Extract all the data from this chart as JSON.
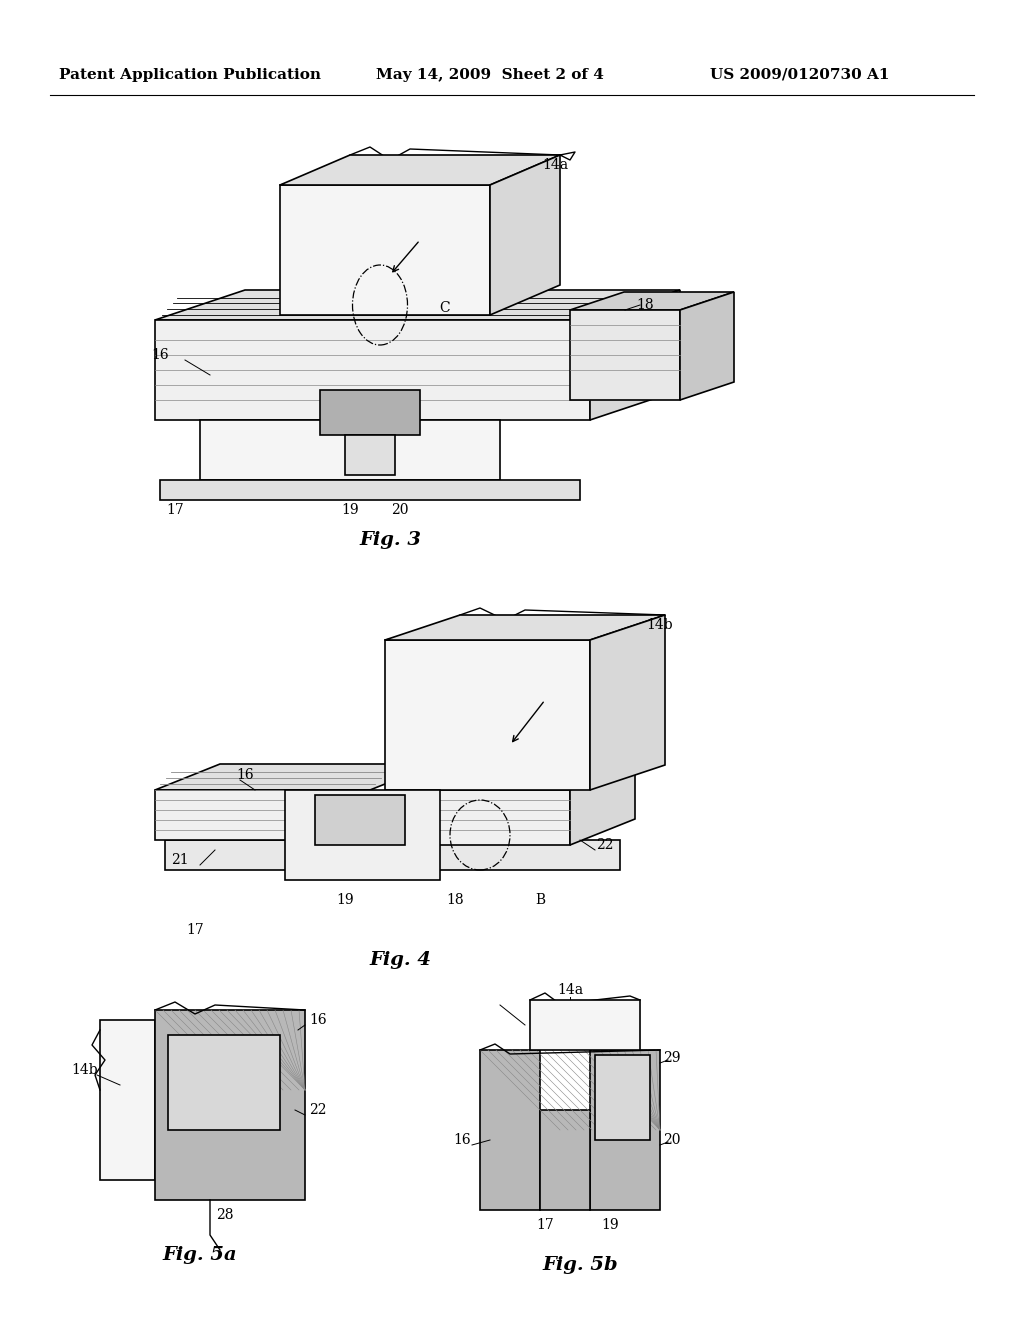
{
  "background_color": "#ffffff",
  "header_left": "Patent Application Publication",
  "header_center": "May 14, 2009  Sheet 2 of 4",
  "header_right": "US 2009/0120730 A1",
  "header_fontsize": 11,
  "fig3_label": "Fig. 3",
  "fig4_label": "Fig. 4",
  "fig5a_label": "Fig. 5a",
  "fig5b_label": "Fig. 5b",
  "label_fontsize": 14,
  "ref_fontsize": 10,
  "page_width": 10.24,
  "page_height": 13.2,
  "dpi": 100
}
